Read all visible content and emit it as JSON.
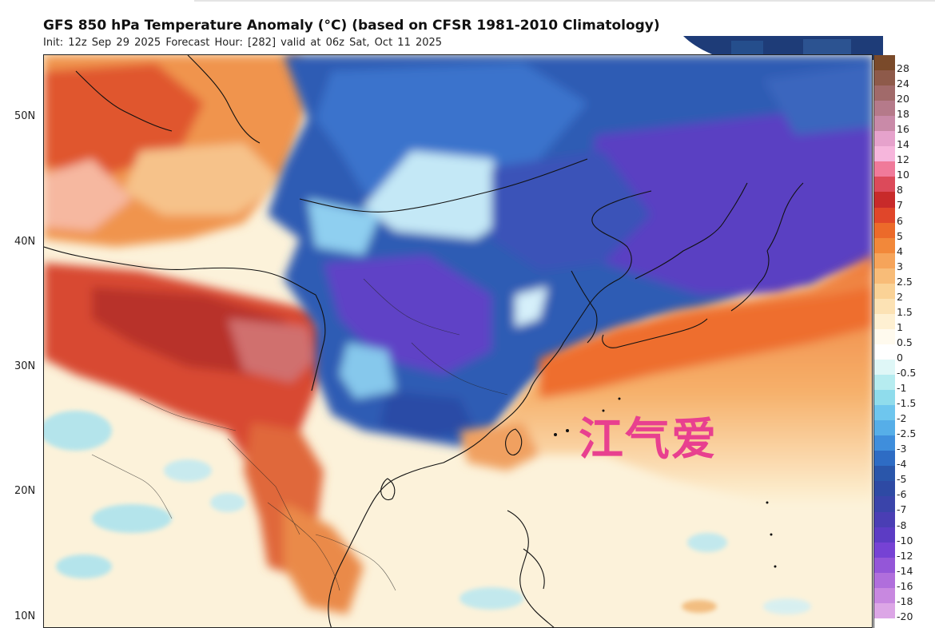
{
  "header": {
    "title": "GFS 850 hPa Temperature Anomaly (°C) (based on CFSR 1981-2010 Climatology)",
    "subtitle": "Init: 12z Sep 29 2025   Forecast Hour: [282]   valid at 06z Sat, Oct 11 2025"
  },
  "latitude_labels": [
    "50N",
    "40N",
    "30N",
    "20N",
    "10N"
  ],
  "colorbar": {
    "labels": [
      "28",
      "24",
      "20",
      "18",
      "16",
      "14",
      "12",
      "10",
      "8",
      "7",
      "6",
      "5",
      "4",
      "3",
      "2.5",
      "2",
      "1.5",
      "1",
      "0.5",
      "0",
      "-0.5",
      "-1",
      "-1.5",
      "-2",
      "-2.5",
      "-3",
      "-4",
      "-5",
      "-6",
      "-7",
      "-8",
      "-10",
      "-12",
      "-14",
      "-16",
      "-18",
      "-20"
    ],
    "colors": [
      "#7a4a2a",
      "#8e5a4a",
      "#a16a6a",
      "#b57a8a",
      "#c98aa8",
      "#e6a2cc",
      "#f6b6dc",
      "#f07a9a",
      "#dc4a5a",
      "#c82a2a",
      "#e0462a",
      "#ec6a2a",
      "#f2883a",
      "#f6a45a",
      "#f8bc78",
      "#fad296",
      "#fce2b4",
      "#fef0d2",
      "#fffaee",
      "#ffffff",
      "#dff7f7",
      "#b6ecf0",
      "#8fdcec",
      "#6ec6ee",
      "#56aee8",
      "#3f8edc",
      "#2e6cc4",
      "#2a56aa",
      "#2e4aa4",
      "#3a44aa",
      "#4a3eb4",
      "#5c3cc4",
      "#7642d4",
      "#9456d8",
      "#b06edc",
      "#c888e0",
      "#dca6e6"
    ]
  },
  "map": {
    "region": "East Asia / Southeast Asia",
    "colors": {
      "warm_deep": "#c0392b",
      "warm_mid": "#ea6a2f",
      "warm_light": "#f8b46a",
      "neutral": "#fdf5dd",
      "cool_light": "#8fd3ee",
      "cool_mid": "#3f6cc8",
      "cold_deep": "#5a3fc2"
    }
  },
  "watermark": {
    "text": "江气爱",
    "color": "#e8408f"
  }
}
